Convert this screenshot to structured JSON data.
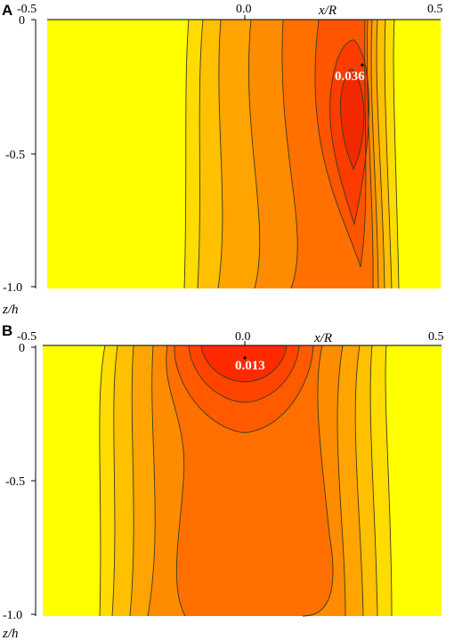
{
  "chart_data": [
    {
      "type": "heatmap",
      "panel": "A",
      "xlabel": "x/R",
      "ylabel": "z/h",
      "xlim": [
        -0.5,
        0.5
      ],
      "ylim": [
        -1.0,
        0
      ],
      "x_ticks": [
        "-0.5",
        "0.0",
        "0.5"
      ],
      "y_ticks": [
        "0",
        "-0.5",
        "-1.0"
      ],
      "peak": {
        "label": "0.036",
        "x": 0.29,
        "z": -0.15
      },
      "colors": [
        "#ffff00",
        "#ffd500",
        "#ffb400",
        "#ff9400",
        "#ff7400",
        "#ff5a00",
        "#ff3c00"
      ]
    },
    {
      "type": "heatmap",
      "panel": "B",
      "xlabel": "x/R",
      "ylabel": "z/h",
      "xlim": [
        -0.5,
        0.5
      ],
      "ylim": [
        -1.0,
        0
      ],
      "x_ticks": [
        "-0.5",
        "0.0",
        "0.5"
      ],
      "y_ticks": [
        "0",
        "-0.5",
        "-1.0"
      ],
      "peak": {
        "label": "0.013",
        "x": 0.03,
        "z": -0.02
      },
      "colors": [
        "#ffff00",
        "#ffd500",
        "#ffb400",
        "#ff9400",
        "#ff7400",
        "#ff5a00",
        "#ff3c00"
      ]
    }
  ]
}
